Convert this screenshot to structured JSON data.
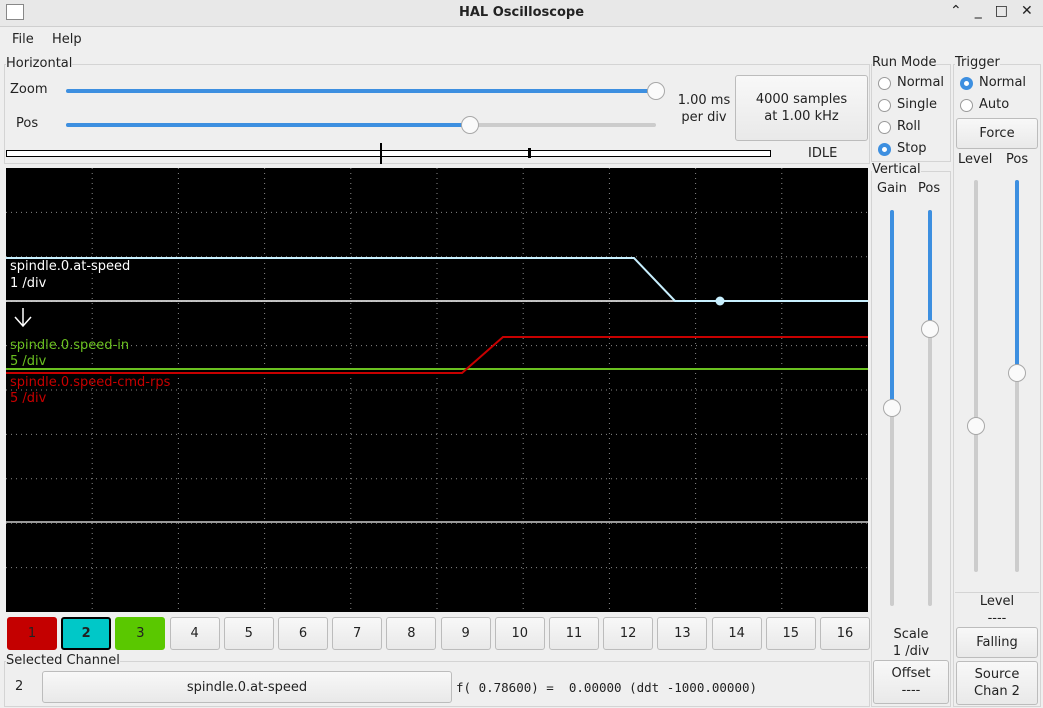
{
  "window": {
    "title": "HAL Oscilloscope"
  },
  "menu": [
    "File",
    "Help"
  ],
  "horizontal": {
    "label": "Horizontal",
    "zoom_label": "Zoom",
    "pos_label": "Pos",
    "rate": [
      "1.00 ms",
      "per div"
    ],
    "samples_button": [
      "4000 samples",
      "at 1.00 kHz"
    ],
    "status": "IDLE"
  },
  "traces": [
    {
      "name": "spindle.0.at-speed",
      "scale": "1 /div"
    },
    {
      "name": "spindle.0.speed-in",
      "scale": "5 /div"
    },
    {
      "name": "spindle.0.speed-cmd-rps",
      "scale": "5 /div"
    }
  ],
  "channels": [
    "1",
    "2",
    "3",
    "4",
    "5",
    "6",
    "7",
    "8",
    "9",
    "10",
    "11",
    "12",
    "13",
    "14",
    "15",
    "16"
  ],
  "selected_channel": {
    "label": "Selected Channel",
    "number": "2",
    "name": "spindle.0.at-speed",
    "readout": "f( 0.78600) =  0.00000 (ddt -1000.00000)"
  },
  "run_mode": {
    "label": "Run Mode",
    "options": [
      "Normal",
      "Single",
      "Roll",
      "Stop"
    ]
  },
  "vertical": {
    "label": "Vertical",
    "gain_label": "Gain",
    "pos_label": "Pos",
    "scale_label": "Scale",
    "scale_value": "1 /div",
    "offset_button": [
      "Offset",
      "----"
    ]
  },
  "trigger": {
    "label": "Trigger",
    "options": [
      "Normal",
      "Auto"
    ],
    "force_button": "Force",
    "level_label": "Level",
    "pos_label": "Pos",
    "level_title": "Level",
    "level_value": "----",
    "edge_button": "Falling",
    "source_button": [
      "Source",
      "Chan  2"
    ]
  }
}
